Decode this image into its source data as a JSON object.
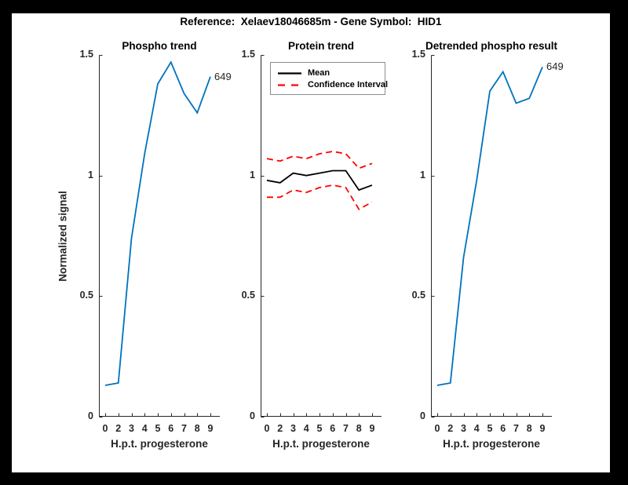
{
  "figure": {
    "title": "Reference:  Xelaev18046685m - Gene Symbol:  HID1",
    "frame_color": "#000000",
    "canvas_color": "#ffffff",
    "axis_color": "#262626",
    "blue": "#0072BD",
    "red": "#FF0000",
    "black": "#000000"
  },
  "chart_data": [
    {
      "type": "line",
      "title": "Phospho trend",
      "xlabel": "H.p.t. progesterone",
      "ylabel": "Normalized signal",
      "x_ticklabels": [
        "0",
        "2",
        "3",
        "4",
        "5",
        "6",
        "7",
        "8",
        "9"
      ],
      "ylim": [
        0,
        1.5
      ],
      "y_ticks": [
        0,
        0.5,
        1,
        1.5
      ],
      "y_ticklabels": [
        "0",
        "0.5",
        "1",
        "1.5"
      ],
      "grid": false,
      "legend": null,
      "annotation": {
        "text": "649"
      },
      "series": [
        {
          "name": "phospho-signal",
          "color": "#0072BD",
          "dash": false,
          "values": [
            0.13,
            0.14,
            0.74,
            1.09,
            1.38,
            1.47,
            1.34,
            1.26,
            1.41
          ]
        }
      ]
    },
    {
      "type": "line",
      "title": "Protein trend",
      "xlabel": "H.p.t. progesterone",
      "ylabel": "",
      "x_ticklabels": [
        "0",
        "2",
        "3",
        "4",
        "5",
        "6",
        "7",
        "8",
        "9"
      ],
      "ylim": [
        0,
        1.5
      ],
      "y_ticks": [
        0,
        0.5,
        1,
        1.5
      ],
      "y_ticklabels": [
        "0",
        "0.5",
        "1",
        "1.5"
      ],
      "grid": false,
      "legend": {
        "position": "northeast",
        "entries": [
          {
            "label": "Mean",
            "color": "#000000",
            "dash": false
          },
          {
            "label": "Confidence Interval",
            "color": "#FF0000",
            "dash": true
          }
        ]
      },
      "annotation": null,
      "series": [
        {
          "name": "mean",
          "color": "#000000",
          "dash": false,
          "values": [
            0.98,
            0.97,
            1.01,
            1.0,
            1.01,
            1.02,
            1.02,
            0.94,
            0.96
          ]
        },
        {
          "name": "ci-upper",
          "color": "#FF0000",
          "dash": true,
          "values": [
            1.07,
            1.06,
            1.08,
            1.07,
            1.09,
            1.1,
            1.09,
            1.03,
            1.05
          ]
        },
        {
          "name": "ci-lower",
          "color": "#FF0000",
          "dash": true,
          "values": [
            0.91,
            0.91,
            0.94,
            0.93,
            0.95,
            0.96,
            0.95,
            0.86,
            0.89
          ]
        }
      ]
    },
    {
      "type": "line",
      "title": "Detrended phospho result",
      "xlabel": "H.p.t. progesterone",
      "ylabel": "",
      "x_ticklabels": [
        "0",
        "2",
        "3",
        "4",
        "5",
        "6",
        "7",
        "8",
        "9"
      ],
      "ylim": [
        0,
        1.5
      ],
      "y_ticks": [
        0,
        0.5,
        1,
        1.5
      ],
      "y_ticklabels": [
        "0",
        "0.5",
        "1",
        "1.5"
      ],
      "grid": false,
      "legend": null,
      "annotation": {
        "text": "649"
      },
      "series": [
        {
          "name": "detrended-phospho-signal",
          "color": "#0072BD",
          "dash": false,
          "values": [
            0.13,
            0.14,
            0.66,
            0.98,
            1.35,
            1.43,
            1.3,
            1.32,
            1.45
          ]
        }
      ]
    }
  ]
}
